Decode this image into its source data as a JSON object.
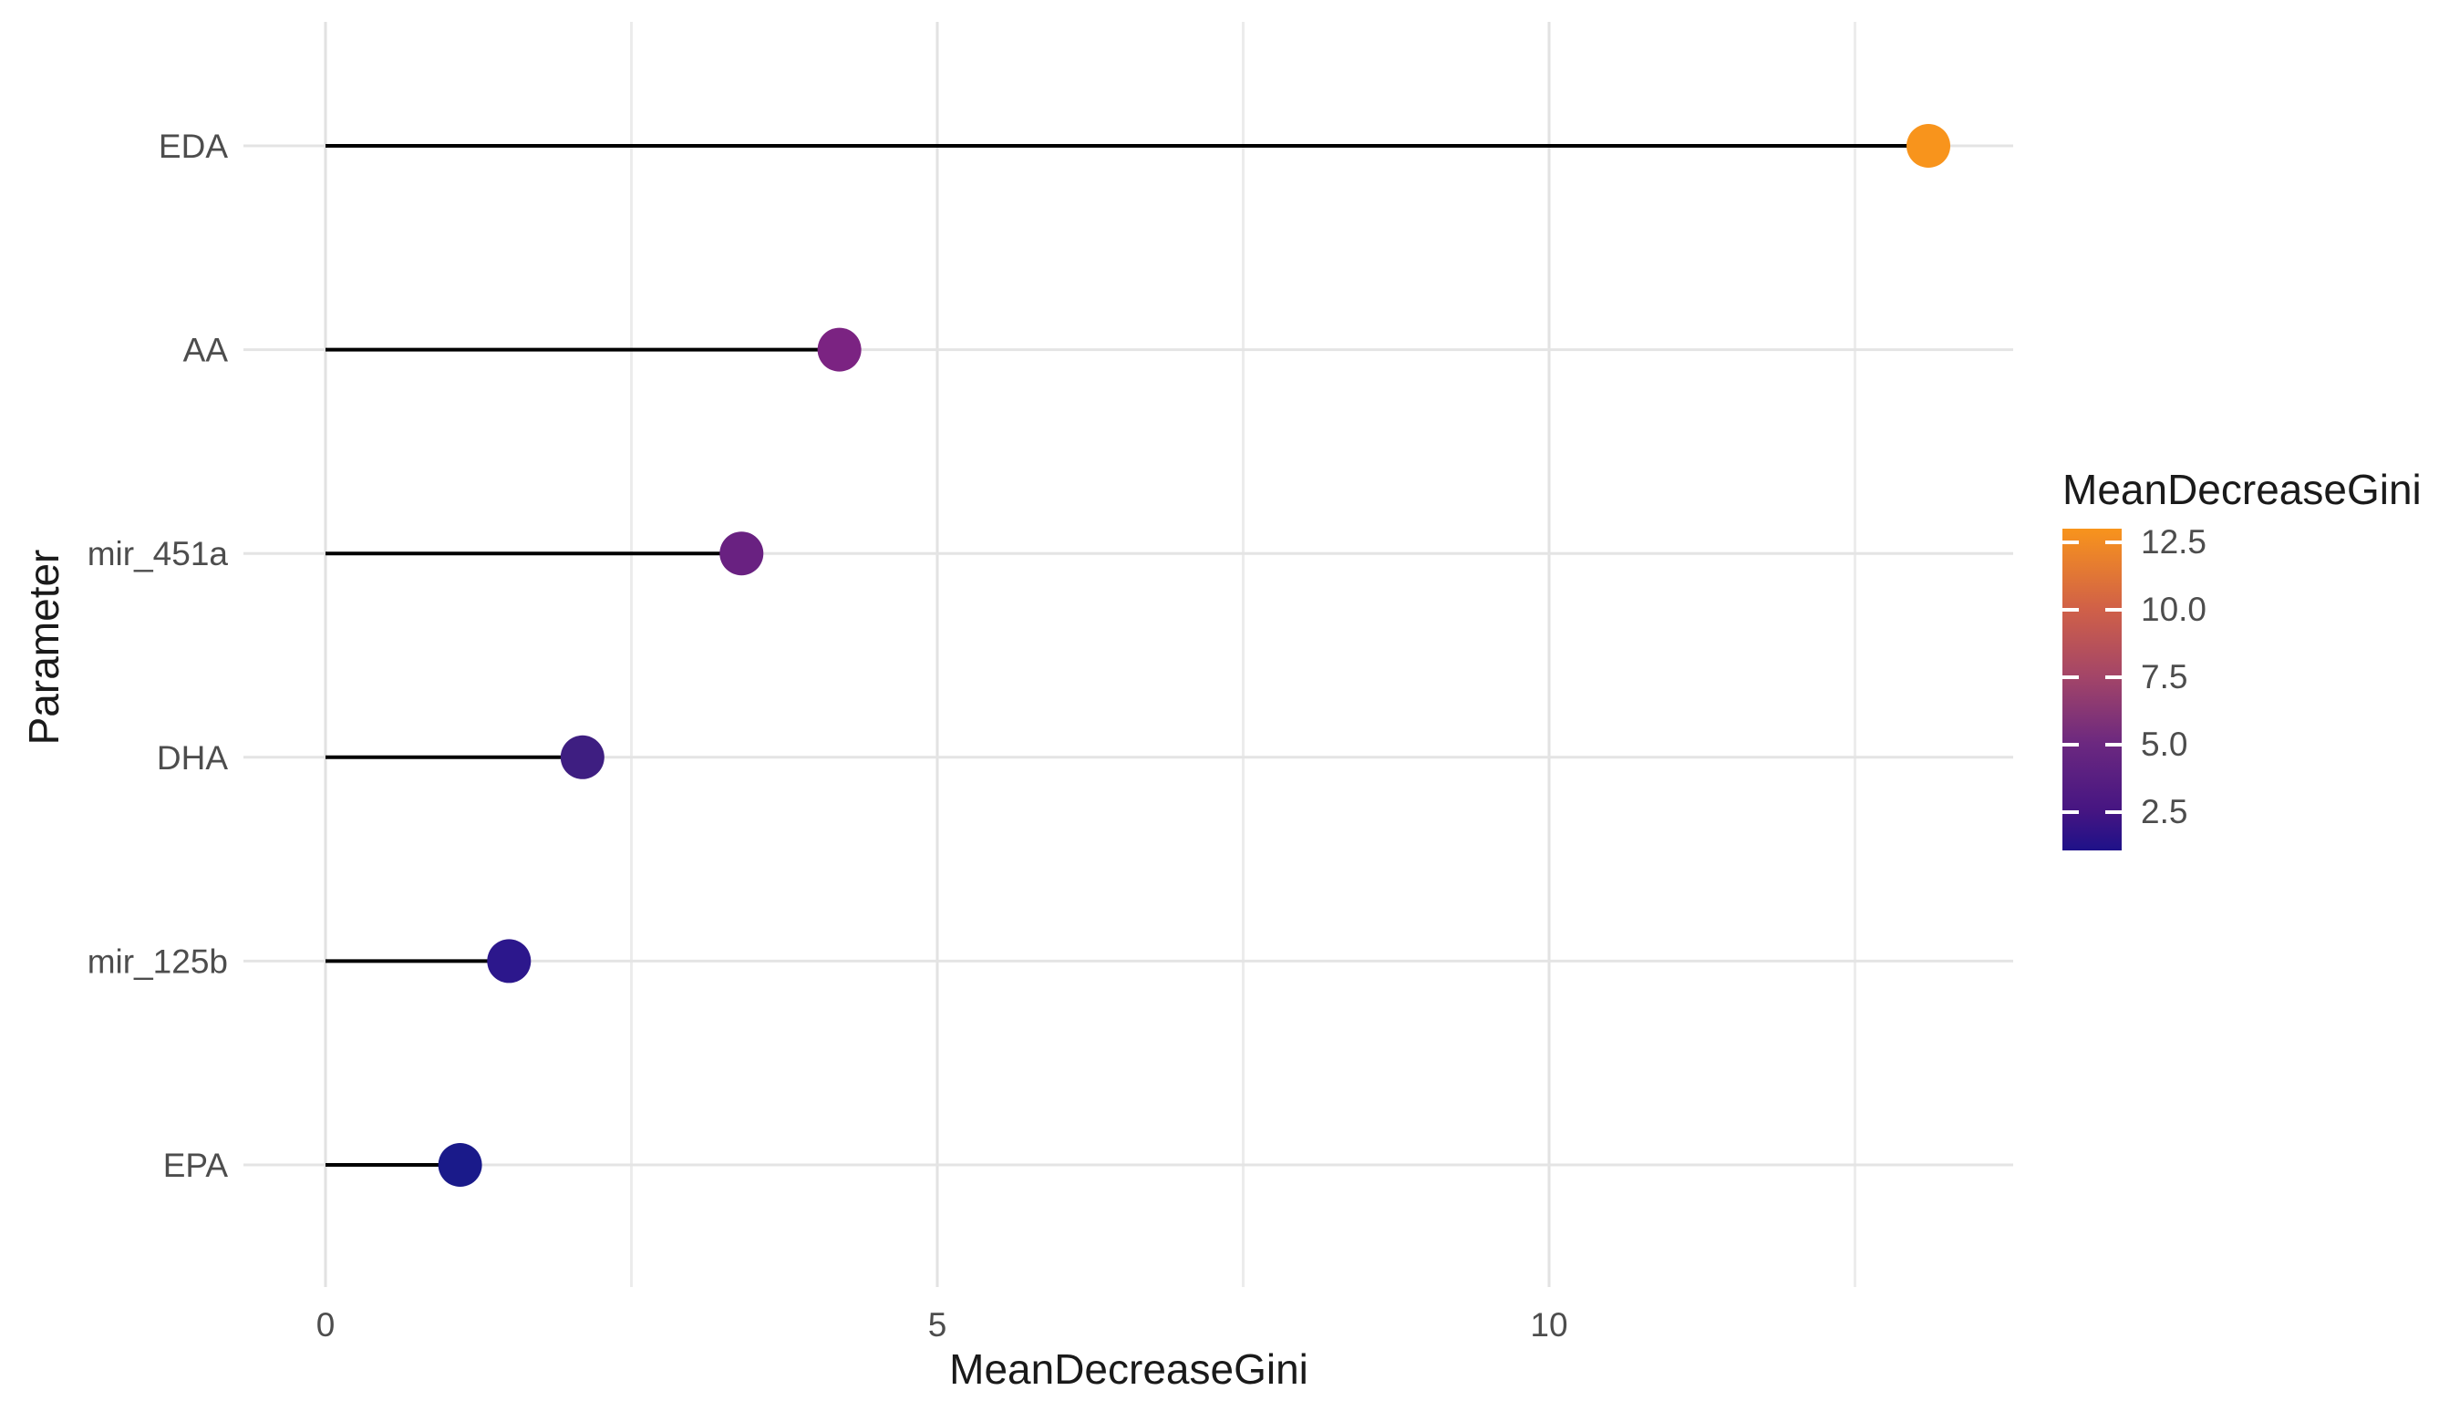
{
  "chart_data": {
    "type": "lollipop",
    "orientation": "horizontal",
    "title": "",
    "xlabel": "MeanDecreaseGini",
    "ylabel": "Parameter",
    "categories": [
      "EDA",
      "AA",
      "mir_451a",
      "DHA",
      "mir_125b",
      "EPA"
    ],
    "values": [
      13.1,
      4.2,
      3.4,
      2.1,
      1.5,
      1.1
    ],
    "point_colors": [
      "#F8941C",
      "#7B2382",
      "#692181",
      "#3E1E81",
      "#2C178C",
      "#1A1A8A"
    ],
    "stem_color": "#000000",
    "x_axis": {
      "major_ticks": [
        0,
        5,
        10
      ],
      "tick_labels": [
        "0",
        "5",
        "10"
      ],
      "minor_ticks": [
        2.5,
        7.5,
        12.5
      ],
      "range": [
        -0.67,
        13.8
      ]
    },
    "grid": {
      "show": true,
      "minor": true
    },
    "legend": {
      "title": "MeanDecreaseGini",
      "type": "colorbar",
      "position": "right",
      "tick_labels": [
        "12.5",
        "10.0",
        "7.5",
        "5.0",
        "2.5"
      ],
      "value_range": [
        1.1,
        13.2
      ],
      "gradient_top_to_bottom": [
        {
          "pos": 0,
          "color": "#F8941C"
        },
        {
          "pos": 25,
          "color": "#D06048"
        },
        {
          "pos": 46,
          "color": "#A34568"
        },
        {
          "pos": 67,
          "color": "#6B2880"
        },
        {
          "pos": 88,
          "color": "#451582"
        },
        {
          "pos": 100,
          "color": "#1E1189"
        }
      ]
    },
    "style_colors": {
      "axis_text": "#4D4D4D",
      "axis_title": "#1A1A1A",
      "grid_major": "#E2E2E2",
      "grid_minor": "#ECECEC",
      "grid_row": "#E4E4E4",
      "background": "#FFFFFF"
    }
  }
}
